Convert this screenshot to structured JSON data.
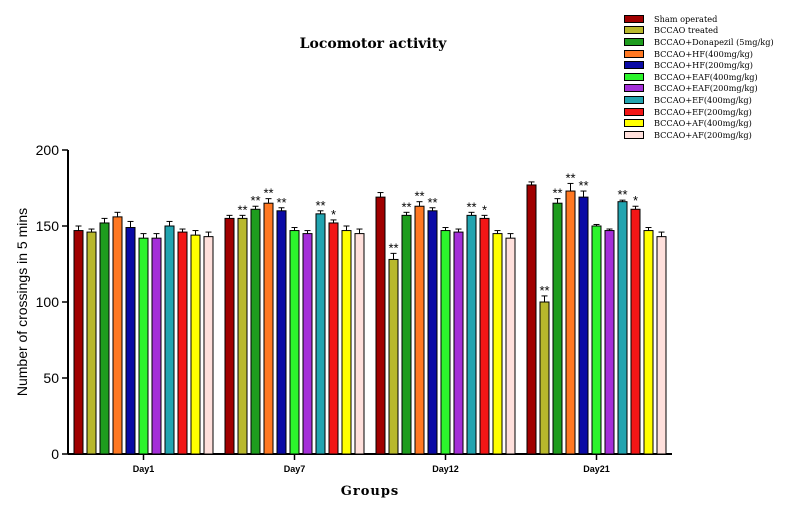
{
  "chart_data": {
    "type": "bar",
    "title": "Locomotor activity",
    "xlabel": "Groups",
    "ylabel": "Number of crossings in 5 mins",
    "ylim": [
      0,
      200
    ],
    "yticks": [
      0,
      50,
      100,
      150,
      200
    ],
    "categories": [
      "Day1",
      "Day7",
      "Day12",
      "Day21"
    ],
    "legend_position": "top-right",
    "series": [
      {
        "name": "Sham operated",
        "color": "#a00000",
        "values": [
          147,
          155,
          169,
          177
        ],
        "errors": [
          3,
          2,
          3,
          2
        ],
        "labels": [
          "",
          "",
          "",
          ""
        ]
      },
      {
        "name": "BCCAO treated",
        "color": "#b8b82c",
        "values": [
          146,
          155,
          128,
          100
        ],
        "errors": [
          2,
          2,
          4,
          4
        ],
        "labels": [
          "",
          "**",
          "**",
          "**"
        ]
      },
      {
        "name": "BCCAO+Donapezil (5mg/kg)",
        "color": "#1e9c1e",
        "values": [
          152,
          161,
          157,
          165
        ],
        "errors": [
          3,
          2,
          2,
          3
        ],
        "labels": [
          "",
          "**",
          "**",
          "**"
        ]
      },
      {
        "name": "BCCAO+HF(400mg/kg)",
        "color": "#ff7822",
        "values": [
          156,
          165,
          163,
          173
        ],
        "errors": [
          3,
          3,
          3,
          5
        ],
        "labels": [
          "",
          "**",
          "**",
          "**"
        ]
      },
      {
        "name": "BCCAO+HF(200mg/kg)",
        "color": "#0a0aa5",
        "values": [
          149,
          160,
          160,
          169
        ],
        "errors": [
          4,
          2,
          2,
          4
        ],
        "labels": [
          "",
          "**",
          "**",
          "**"
        ]
      },
      {
        "name": "BCCAO+EAF(400mg/kg)",
        "color": "#2cf42c",
        "values": [
          142,
          147,
          147,
          150
        ],
        "errors": [
          3,
          2,
          2,
          1
        ],
        "labels": [
          "",
          "",
          "",
          ""
        ]
      },
      {
        "name": "BCCAO+EAF(200mg/kg)",
        "color": "#a42fd8",
        "values": [
          142,
          145,
          146,
          147
        ],
        "errors": [
          3,
          2,
          2,
          1
        ],
        "labels": [
          "",
          "",
          "",
          ""
        ]
      },
      {
        "name": "BCCAO+EF(400mg/kg)",
        "color": "#22a4b0",
        "values": [
          150,
          158,
          157,
          166
        ],
        "errors": [
          3,
          2,
          2,
          1
        ],
        "labels": [
          "",
          "**",
          "**",
          "**"
        ]
      },
      {
        "name": "BCCAO+EF(200mg/kg)",
        "color": "#f21616",
        "values": [
          146,
          152,
          155,
          161
        ],
        "errors": [
          2,
          2,
          2,
          2
        ],
        "labels": [
          "",
          "*",
          "*",
          "*"
        ]
      },
      {
        "name": "BCCAO+AF(400mg/kg)",
        "color": "#ffff00",
        "values": [
          144,
          147,
          145,
          147
        ],
        "errors": [
          3,
          3,
          2,
          2
        ],
        "labels": [
          "",
          "",
          "",
          ""
        ]
      },
      {
        "name": "BCCAO+AF(200mg/kg)",
        "color": "#ffe0dc",
        "values": [
          143,
          145,
          142,
          143
        ],
        "errors": [
          3,
          3,
          3,
          3
        ],
        "labels": [
          "",
          "",
          "",
          ""
        ]
      }
    ]
  }
}
